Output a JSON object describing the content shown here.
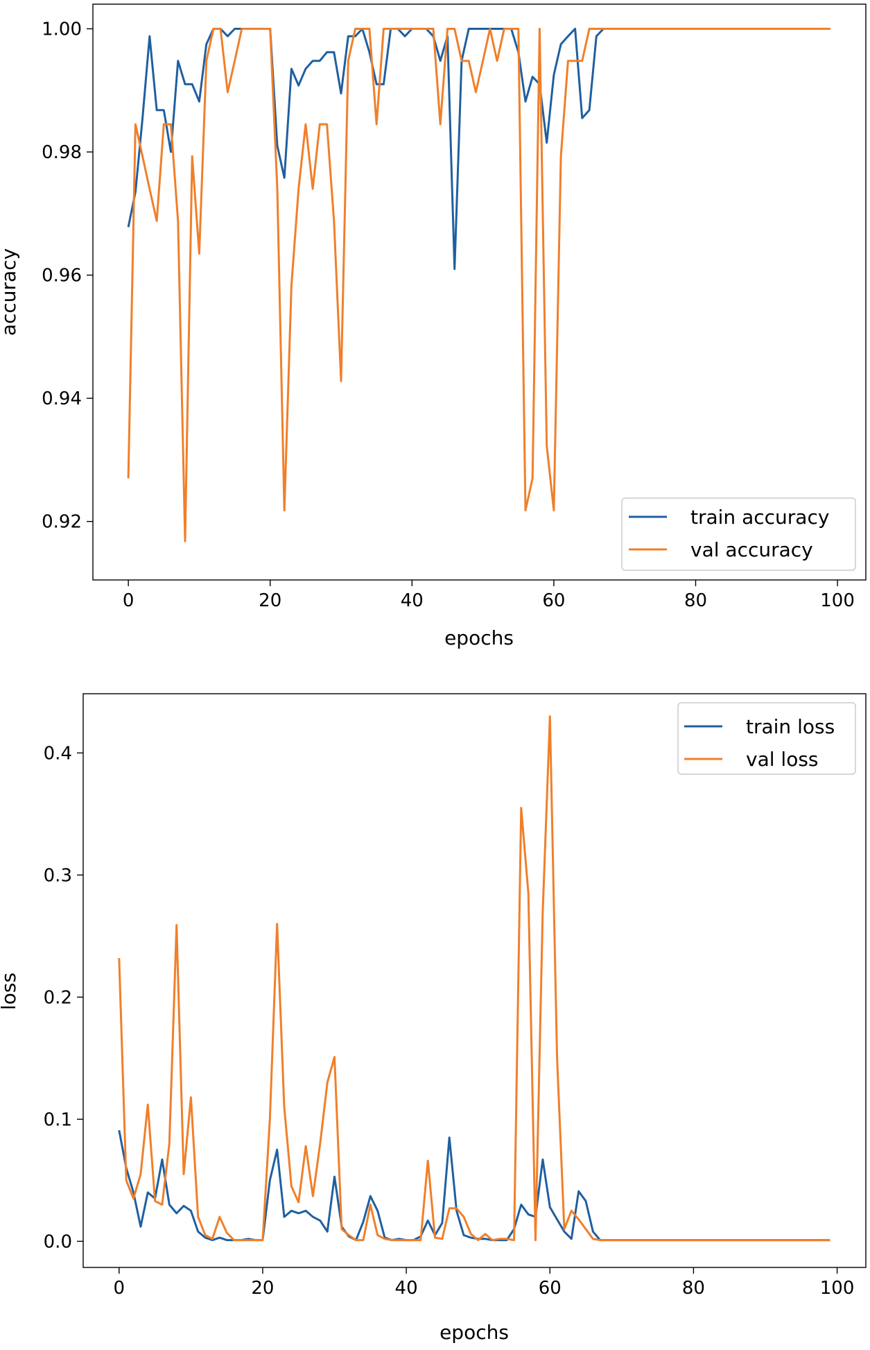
{
  "chart_data": [
    {
      "type": "line",
      "id": "accuracy",
      "title": "",
      "xlabel": "epochs",
      "ylabel": "accuracy",
      "xlim": [
        -5,
        104
      ],
      "ylim": [
        0.9105,
        1.004
      ],
      "xticks": [
        0,
        20,
        40,
        60,
        80,
        100
      ],
      "xtick_labels": [
        "0",
        "20",
        "40",
        "60",
        "80",
        "100"
      ],
      "yticks": [
        0.92,
        0.94,
        0.96,
        0.98,
        1.0
      ],
      "ytick_labels": [
        "0.92",
        "0.94",
        "0.96",
        "0.98",
        "1.00"
      ],
      "legend_position": "lower-right",
      "grid": false,
      "colors": {
        "train": "#1f5fa0",
        "val": "#f07f2a"
      },
      "series": [
        {
          "name": "train accuracy",
          "color": "#1f5fa0",
          "x": [
            0,
            1,
            2,
            3,
            4,
            5,
            6,
            7,
            8,
            9,
            10,
            11,
            12,
            13,
            14,
            15,
            16,
            17,
            18,
            19,
            20,
            21,
            22,
            23,
            24,
            25,
            26,
            27,
            28,
            29,
            30,
            31,
            32,
            33,
            34,
            35,
            36,
            37,
            38,
            39,
            40,
            41,
            42,
            43,
            44,
            45,
            46,
            47,
            48,
            49,
            50,
            51,
            52,
            53,
            54,
            55,
            56,
            57,
            58,
            59,
            60,
            61,
            62,
            63,
            64,
            65,
            66,
            67,
            68,
            69,
            70,
            71,
            72,
            73,
            74,
            75,
            76,
            77,
            78,
            79,
            80,
            81,
            82,
            83,
            84,
            85,
            86,
            87,
            88,
            89,
            90,
            91,
            92,
            93,
            94,
            95,
            96,
            97,
            98,
            99
          ],
          "values": [
            0.9678,
            0.9735,
            0.9855,
            0.9988,
            0.9868,
            0.9868,
            0.98,
            0.9948,
            0.991,
            0.991,
            0.9882,
            0.9975,
            1.0,
            1.0,
            0.9988,
            1.0,
            1.0,
            1.0,
            1.0,
            1.0,
            1.0,
            0.981,
            0.9758,
            0.9935,
            0.9908,
            0.9935,
            0.9948,
            0.9948,
            0.9962,
            0.9962,
            0.9895,
            0.9988,
            0.9988,
            1.0,
            0.9962,
            0.991,
            0.991,
            1.0,
            1.0,
            0.9988,
            1.0,
            1.0,
            1.0,
            0.9988,
            0.9948,
            0.9988,
            0.961,
            0.9948,
            1.0,
            1.0,
            1.0,
            1.0,
            1.0,
            1.0,
            1.0,
            0.9962,
            0.9882,
            0.9922,
            0.991,
            0.9815,
            0.9925,
            0.9975,
            0.9988,
            1.0,
            0.9855,
            0.9868,
            0.9988,
            1.0,
            1.0,
            1.0,
            1.0,
            1.0,
            1.0,
            1.0,
            1.0,
            1.0,
            1.0,
            1.0,
            1.0,
            1.0,
            1.0,
            1.0,
            1.0,
            1.0,
            1.0,
            1.0,
            1.0,
            1.0,
            1.0,
            1.0,
            1.0,
            1.0,
            1.0,
            1.0,
            1.0,
            1.0,
            1.0,
            1.0,
            1.0,
            1.0
          ]
        },
        {
          "name": "val accuracy",
          "color": "#f07f2a",
          "x": [
            0,
            1,
            2,
            3,
            4,
            5,
            6,
            7,
            8,
            9,
            10,
            11,
            12,
            13,
            14,
            15,
            16,
            17,
            18,
            19,
            20,
            21,
            22,
            23,
            24,
            25,
            26,
            27,
            28,
            29,
            30,
            31,
            32,
            33,
            34,
            35,
            36,
            37,
            38,
            39,
            40,
            41,
            42,
            43,
            44,
            45,
            46,
            47,
            48,
            49,
            50,
            51,
            52,
            53,
            54,
            55,
            56,
            57,
            58,
            59,
            60,
            61,
            62,
            63,
            64,
            65,
            66,
            67,
            68,
            69,
            70,
            71,
            72,
            73,
            74,
            75,
            76,
            77,
            78,
            79,
            80,
            81,
            82,
            83,
            84,
            85,
            86,
            87,
            88,
            89,
            90,
            91,
            92,
            93,
            94,
            95,
            96,
            97,
            98,
            99
          ],
          "values": [
            0.927,
            0.9845,
            0.9793,
            0.974,
            0.9688,
            0.9845,
            0.9845,
            0.9688,
            0.9168,
            0.9793,
            0.9635,
            0.9948,
            1.0,
            1.0,
            0.9897,
            0.9948,
            1.0,
            1.0,
            1.0,
            1.0,
            1.0,
            0.974,
            0.9218,
            0.9583,
            0.974,
            0.9845,
            0.974,
            0.9845,
            0.9845,
            0.9688,
            0.9428,
            0.9948,
            1.0,
            1.0,
            1.0,
            0.9845,
            1.0,
            1.0,
            1.0,
            1.0,
            1.0,
            1.0,
            1.0,
            1.0,
            0.9845,
            1.0,
            1.0,
            0.9948,
            0.9948,
            0.9897,
            0.9948,
            1.0,
            0.9948,
            1.0,
            1.0,
            1.0,
            0.9218,
            0.927,
            1.0,
            0.9323,
            0.9218,
            0.9793,
            0.9948,
            0.9948,
            0.9948,
            1.0,
            1.0,
            1.0,
            1.0,
            1.0,
            1.0,
            1.0,
            1.0,
            1.0,
            1.0,
            1.0,
            1.0,
            1.0,
            1.0,
            1.0,
            1.0,
            1.0,
            1.0,
            1.0,
            1.0,
            1.0,
            1.0,
            1.0,
            1.0,
            1.0,
            1.0,
            1.0,
            1.0,
            1.0,
            1.0,
            1.0,
            1.0,
            1.0,
            1.0,
            1.0
          ]
        }
      ]
    },
    {
      "type": "line",
      "id": "loss",
      "title": "",
      "xlabel": "epochs",
      "ylabel": "loss",
      "xlim": [
        -5,
        104
      ],
      "ylim": [
        -0.0214,
        0.4485
      ],
      "xticks": [
        0,
        20,
        40,
        60,
        80,
        100
      ],
      "xtick_labels": [
        "0",
        "20",
        "40",
        "60",
        "80",
        "100"
      ],
      "yticks": [
        0.0,
        0.1,
        0.2,
        0.3,
        0.4
      ],
      "ytick_labels": [
        "0.0",
        "0.1",
        "0.2",
        "0.3",
        "0.4"
      ],
      "legend_position": "upper-right",
      "grid": false,
      "colors": {
        "train": "#1f5fa0",
        "val": "#f07f2a"
      },
      "series": [
        {
          "name": "train loss",
          "color": "#1f5fa0",
          "x": [
            0,
            1,
            2,
            3,
            4,
            5,
            6,
            7,
            8,
            9,
            10,
            11,
            12,
            13,
            14,
            15,
            16,
            17,
            18,
            19,
            20,
            21,
            22,
            23,
            24,
            25,
            26,
            27,
            28,
            29,
            30,
            31,
            32,
            33,
            34,
            35,
            36,
            37,
            38,
            39,
            40,
            41,
            42,
            43,
            44,
            45,
            46,
            47,
            48,
            49,
            50,
            51,
            52,
            53,
            54,
            55,
            56,
            57,
            58,
            59,
            60,
            61,
            62,
            63,
            64,
            65,
            66,
            67,
            68,
            69,
            70,
            71,
            72,
            73,
            74,
            75,
            76,
            77,
            78,
            79,
            80,
            81,
            82,
            83,
            84,
            85,
            86,
            87,
            88,
            89,
            90,
            91,
            92,
            93,
            94,
            95,
            96,
            97,
            98,
            99
          ],
          "values": [
            0.091,
            0.06,
            0.04,
            0.012,
            0.04,
            0.035,
            0.067,
            0.03,
            0.023,
            0.029,
            0.025,
            0.008,
            0.003,
            0.001,
            0.003,
            0.001,
            0.001,
            0.001,
            0.002,
            0.001,
            0.001,
            0.05,
            0.075,
            0.02,
            0.025,
            0.023,
            0.025,
            0.02,
            0.017,
            0.008,
            0.053,
            0.012,
            0.004,
            0.001,
            0.016,
            0.037,
            0.025,
            0.003,
            0.001,
            0.002,
            0.001,
            0.001,
            0.004,
            0.017,
            0.005,
            0.015,
            0.085,
            0.025,
            0.005,
            0.003,
            0.002,
            0.002,
            0.001,
            0.001,
            0.001,
            0.01,
            0.03,
            0.022,
            0.02,
            0.067,
            0.028,
            0.018,
            0.008,
            0.002,
            0.041,
            0.033,
            0.008,
            0.001,
            0.001,
            0.001,
            0.001,
            0.001,
            0.001,
            0.001,
            0.001,
            0.001,
            0.001,
            0.001,
            0.001,
            0.001,
            0.001,
            0.001,
            0.001,
            0.001,
            0.001,
            0.001,
            0.001,
            0.001,
            0.001,
            0.001,
            0.001,
            0.001,
            0.001,
            0.001,
            0.001,
            0.001,
            0.001,
            0.001,
            0.001,
            0.001
          ]
        },
        {
          "name": "val loss",
          "color": "#f07f2a",
          "x": [
            0,
            1,
            2,
            3,
            4,
            5,
            6,
            7,
            8,
            9,
            10,
            11,
            12,
            13,
            14,
            15,
            16,
            17,
            18,
            19,
            20,
            21,
            22,
            23,
            24,
            25,
            26,
            27,
            28,
            29,
            30,
            31,
            32,
            33,
            34,
            35,
            36,
            37,
            38,
            39,
            40,
            41,
            42,
            43,
            44,
            45,
            46,
            47,
            48,
            49,
            50,
            51,
            52,
            53,
            54,
            55,
            56,
            57,
            58,
            59,
            60,
            61,
            62,
            63,
            64,
            65,
            66,
            67,
            68,
            69,
            70,
            71,
            72,
            73,
            74,
            75,
            76,
            77,
            78,
            79,
            80,
            81,
            82,
            83,
            84,
            85,
            86,
            87,
            88,
            89,
            90,
            91,
            92,
            93,
            94,
            95,
            96,
            97,
            98,
            99
          ],
          "values": [
            0.232,
            0.05,
            0.035,
            0.055,
            0.112,
            0.033,
            0.03,
            0.08,
            0.259,
            0.055,
            0.118,
            0.02,
            0.005,
            0.002,
            0.02,
            0.007,
            0.001,
            0.001,
            0.001,
            0.001,
            0.001,
            0.1,
            0.26,
            0.11,
            0.045,
            0.032,
            0.078,
            0.037,
            0.08,
            0.13,
            0.151,
            0.01,
            0.005,
            0.001,
            0.001,
            0.03,
            0.005,
            0.002,
            0.001,
            0.001,
            0.001,
            0.001,
            0.001,
            0.066,
            0.003,
            0.002,
            0.027,
            0.027,
            0.02,
            0.006,
            0.001,
            0.006,
            0.001,
            0.002,
            0.002,
            0.001,
            0.355,
            0.285,
            0.001,
            0.27,
            0.43,
            0.15,
            0.01,
            0.025,
            0.018,
            0.01,
            0.002,
            0.001,
            0.001,
            0.001,
            0.001,
            0.001,
            0.001,
            0.001,
            0.001,
            0.001,
            0.001,
            0.001,
            0.001,
            0.001,
            0.001,
            0.001,
            0.001,
            0.001,
            0.001,
            0.001,
            0.001,
            0.001,
            0.001,
            0.001,
            0.001,
            0.001,
            0.001,
            0.001,
            0.001,
            0.001,
            0.001,
            0.001,
            0.001,
            0.001
          ]
        }
      ]
    }
  ]
}
